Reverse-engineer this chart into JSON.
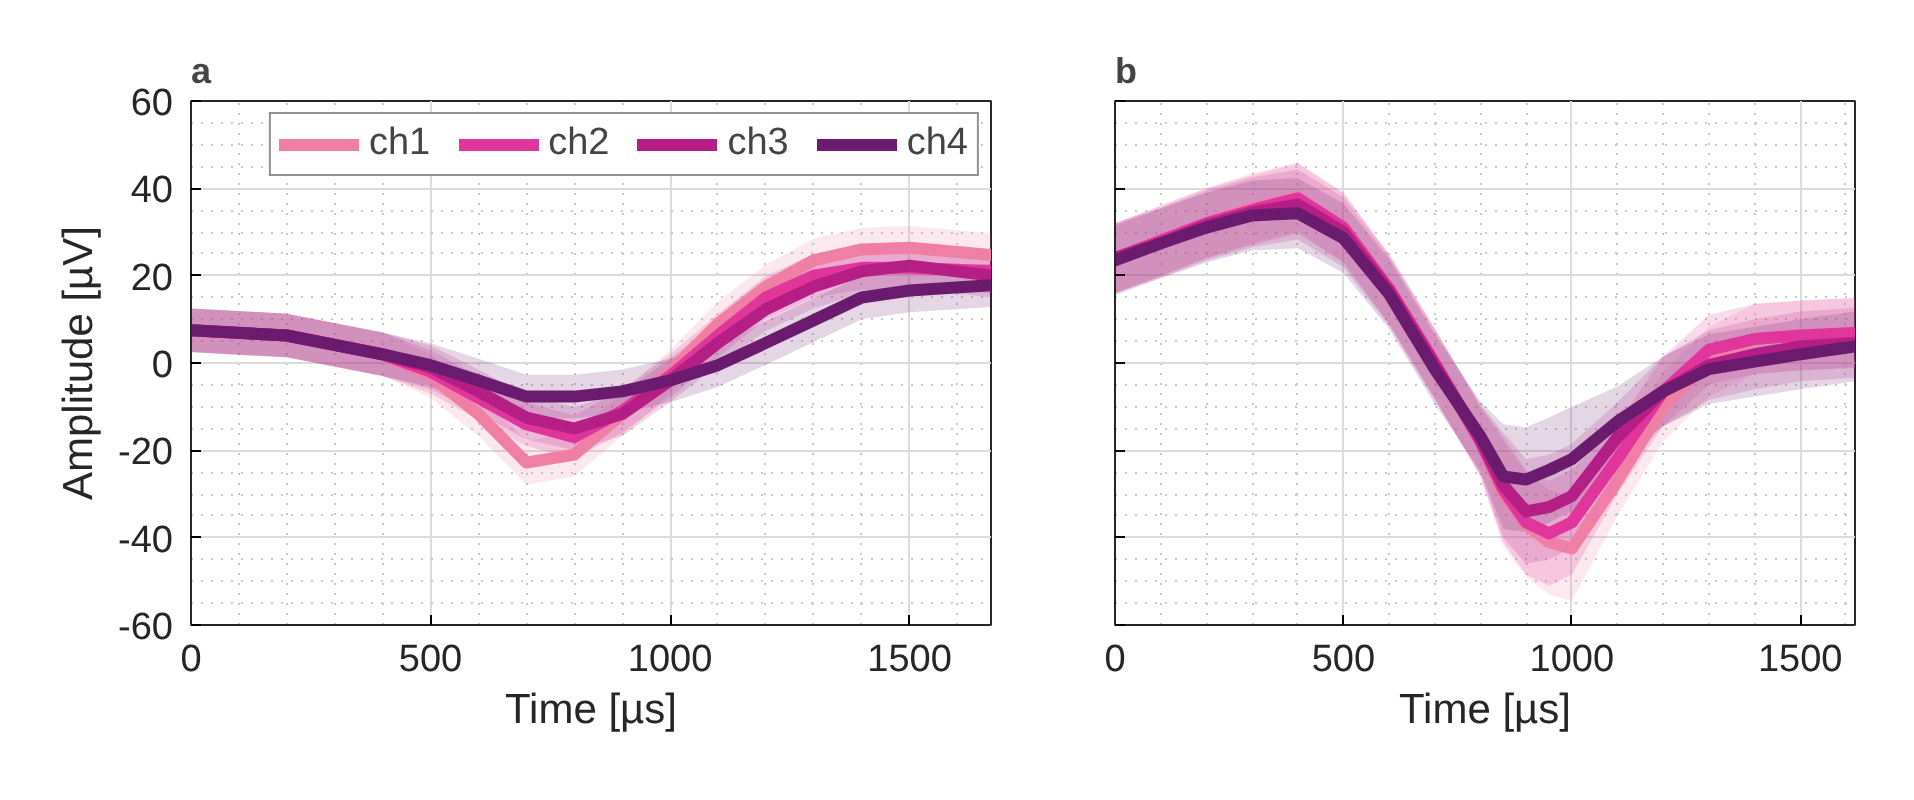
{
  "chart_data": [
    {
      "type": "line",
      "title": "a",
      "xlabel": "Time [µs]",
      "ylabel": "Amplitude [µV]",
      "xlim": [
        0,
        1670
      ],
      "ylim": [
        -60,
        60
      ],
      "xticks": [
        0,
        500,
        1000,
        1500
      ],
      "yticks": [
        -60,
        -40,
        -20,
        0,
        20,
        40,
        60
      ],
      "grid": true,
      "legend": "top",
      "line_style": "solid",
      "x": [
        0,
        200,
        400,
        500,
        600,
        700,
        800,
        900,
        1000,
        1100,
        1200,
        1300,
        1400,
        1500,
        1670
      ],
      "series": [
        {
          "name": "ch1",
          "color": "#f07fa5",
          "values": [
            7.5,
            6.3,
            2,
            -3,
            -11.7,
            -22.8,
            -21,
            -11.7,
            -2,
            9,
            17.5,
            23.5,
            26,
            26.4,
            24.7
          ],
          "lower": [
            2.5,
            1.3,
            -3,
            -8,
            -16.7,
            -27.8,
            -26,
            -16.7,
            -7,
            4,
            12.5,
            18.5,
            21,
            21.4,
            19.7
          ],
          "upper": [
            12.5,
            11.3,
            7,
            2,
            -6.7,
            -17.8,
            -16,
            -6.7,
            3,
            14,
            22.5,
            28.5,
            31,
            31.4,
            29.7
          ]
        },
        {
          "name": "ch2",
          "color": "#e0359a",
          "values": [
            7.5,
            6.3,
            2,
            -2,
            -8,
            -14,
            -17,
            -11,
            -3,
            6.3,
            15,
            20,
            21.8,
            21.8,
            21
          ],
          "lower": [
            2.5,
            1.3,
            -3,
            -7,
            -13,
            -19,
            -22,
            -16,
            -8,
            1.3,
            10,
            15,
            16.8,
            16.8,
            16
          ],
          "upper": [
            12.5,
            11.3,
            7,
            3,
            -3,
            -9,
            -12,
            -6,
            2,
            11.3,
            20,
            25,
            26.8,
            26.8,
            26
          ]
        },
        {
          "name": "ch3",
          "color": "#b51f85",
          "values": [
            7.5,
            6.3,
            2,
            -1,
            -6.5,
            -12.5,
            -15,
            -11.7,
            -4,
            4.6,
            12.3,
            17.5,
            21,
            22.3,
            20
          ],
          "lower": [
            2.5,
            1.3,
            -3,
            -6,
            -11.5,
            -17.5,
            -20,
            -16.7,
            -9,
            -0.4,
            7.3,
            12.5,
            16,
            17.3,
            15
          ],
          "upper": [
            12.5,
            11.3,
            7,
            4,
            -1.5,
            -7.5,
            -10,
            -6.7,
            1,
            9.6,
            17.3,
            22.5,
            26,
            27.3,
            25
          ]
        },
        {
          "name": "ch4",
          "color": "#6a1b6e",
          "values": [
            7.5,
            6.3,
            2,
            -0.5,
            -4,
            -7.7,
            -7.7,
            -6.5,
            -4,
            -0.5,
            4.6,
            9.8,
            15,
            16.6,
            17.8
          ],
          "lower": [
            2.5,
            1.3,
            -3,
            -5.5,
            -9,
            -12.7,
            -12.7,
            -11.5,
            -9,
            -5.5,
            -0.4,
            4.8,
            10,
            11.6,
            12.8
          ],
          "upper": [
            12.5,
            11.3,
            7,
            4.5,
            1,
            -2.7,
            -2.7,
            -1.5,
            1,
            4.5,
            9.6,
            14.8,
            20,
            21.6,
            22.8
          ]
        }
      ]
    },
    {
      "type": "line",
      "title": "b",
      "xlabel": "Time [µs]",
      "xlim": [
        0,
        1620
      ],
      "ylim": [
        -60,
        60
      ],
      "xticks": [
        0,
        500,
        1000,
        1500
      ],
      "yticks": [
        -60,
        -40,
        -20,
        0,
        20,
        40,
        60
      ],
      "grid": true,
      "tick_labels": "x",
      "line_style": "solid",
      "x": [
        0,
        100,
        200,
        300,
        400,
        500,
        600,
        700,
        800,
        850,
        900,
        950,
        1000,
        1100,
        1200,
        1300,
        1400,
        1500,
        1620
      ],
      "series": [
        {
          "color": "#f07fa5",
          "values": [
            24,
            28,
            32,
            35.5,
            38,
            31,
            17,
            0,
            -18,
            -30,
            -37,
            -41,
            -42.5,
            -27,
            -10,
            0.3,
            5.5,
            6.3,
            6.9
          ],
          "lower": [
            16,
            20,
            24,
            27.5,
            30,
            23,
            9,
            -8,
            -26,
            -42,
            -49,
            -53,
            -54.5,
            -35,
            -18,
            -7.7,
            -2.5,
            -1.7,
            -1.1
          ],
          "upper": [
            32,
            36,
            40,
            43.5,
            46,
            39,
            25,
            8,
            -10,
            -18,
            -25,
            -29,
            -30.5,
            -19,
            -2,
            8.3,
            13.5,
            14.3,
            14.9
          ]
        },
        {
          "color": "#e0359a",
          "values": [
            24,
            28,
            32,
            35,
            37.7,
            31,
            17,
            0,
            -18,
            -29,
            -36.5,
            -39,
            -36.5,
            -22,
            -6.5,
            3,
            5.5,
            6.3,
            6.9
          ],
          "lower": [
            16,
            20,
            24,
            27,
            29.7,
            23,
            9,
            -8,
            -26,
            -41,
            -48.5,
            -51,
            -48.5,
            -30,
            -14.5,
            -5,
            -2.5,
            -1.7,
            -1.1
          ],
          "upper": [
            32,
            36,
            40,
            43,
            45.7,
            39,
            25,
            8,
            -10,
            -17,
            -24.5,
            -27,
            -24.5,
            -14,
            1.5,
            11,
            13.5,
            14.3,
            14.9
          ]
        },
        {
          "color": "#b51f85",
          "values": [
            24,
            27.5,
            31.5,
            34.5,
            36.3,
            30,
            16.5,
            -0.5,
            -17.5,
            -28,
            -34,
            -33,
            -30.5,
            -17,
            -6.5,
            -0.5,
            2,
            3.8,
            4.6
          ],
          "lower": [
            16,
            19.5,
            23.5,
            26.5,
            28.3,
            22,
            8.5,
            -8.5,
            -25.5,
            -40,
            -46,
            -45,
            -42.5,
            -25,
            -14.5,
            -8.5,
            -6,
            -4.2,
            -3.4
          ],
          "upper": [
            32,
            35.5,
            39.5,
            42.5,
            44.3,
            38,
            24.5,
            7.5,
            -9.5,
            -16,
            -22,
            -21,
            -18.5,
            -9,
            1.5,
            7.5,
            10,
            11.8,
            12.6
          ]
        },
        {
          "color": "#6a1b6e",
          "values": [
            23.5,
            27.4,
            31,
            33.8,
            34.3,
            28.6,
            15.8,
            -1.4,
            -16.8,
            -26,
            -26.7,
            -24.5,
            -22,
            -13.4,
            -6.5,
            -1.4,
            0.3,
            2,
            3.8
          ],
          "lower": [
            15.5,
            19.4,
            23,
            25.8,
            26.3,
            20.6,
            7.8,
            -9.4,
            -24.8,
            -38,
            -38.7,
            -36.5,
            -34,
            -21.4,
            -14.5,
            -9.4,
            -7.7,
            -6,
            -4.2
          ],
          "upper": [
            31.5,
            35.4,
            39,
            41.8,
            42.3,
            36.6,
            23.8,
            6.6,
            -8.8,
            -14,
            -14.7,
            -12.5,
            -10,
            -5.4,
            1.5,
            6.6,
            8.3,
            10,
            11.8
          ]
        }
      ]
    }
  ]
}
